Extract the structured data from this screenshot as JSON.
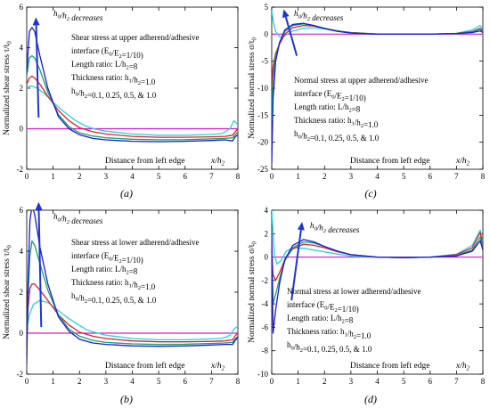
{
  "figure": {
    "colors": {
      "h01": "#1a1ad6",
      "h025": "#13a36a",
      "h05": "#e2202c",
      "h10": "#27d3e0",
      "zero": "#d61ad6",
      "arrow": "#1c35d8"
    }
  },
  "chart_data": [
    {
      "type": "line",
      "panel_tag": "(a)",
      "xlabel": "Distance from left edge",
      "xlabel_var": "x/h2",
      "ylabel": "Normalized shear stress τ/t0",
      "xlim": [
        0,
        8
      ],
      "ylim": [
        -2,
        6
      ],
      "xticks": [
        "0",
        "1",
        "2",
        "3",
        "4",
        "5",
        "6",
        "7",
        "8"
      ],
      "yticks": [
        "-2",
        "0",
        "2",
        "4",
        "6"
      ],
      "arrow_label": "h0/h2 decreases",
      "annotation": [
        "Shear stress at upper adherend/adhesive",
        "interface (E0/E2=1/10)",
        "Length ratio: L/h2=8",
        "Thickness ratio: h1/h2=1.0",
        "h0/h2=0.1, 0.25, 0.5, & 1.0"
      ],
      "series": [
        {
          "color_key": "h01",
          "x": [
            0,
            0.1,
            0.2,
            0.3,
            0.5,
            0.8,
            1.2,
            1.6,
            2,
            2.5,
            3,
            4,
            5,
            6,
            7,
            7.5,
            7.8,
            7.9,
            8
          ],
          "y": [
            2.8,
            4.8,
            5.0,
            4.8,
            3.6,
            2.0,
            0.6,
            0.0,
            -0.3,
            -0.48,
            -0.55,
            -0.62,
            -0.64,
            -0.62,
            -0.58,
            -0.55,
            -0.6,
            -0.4,
            -0.3
          ]
        },
        {
          "color_key": "h025",
          "x": [
            0,
            0.1,
            0.2,
            0.3,
            0.5,
            0.8,
            1.2,
            1.6,
            2,
            2.5,
            3,
            4,
            5,
            6,
            7,
            7.5,
            7.8,
            7.9,
            8
          ],
          "y": [
            2.6,
            3.5,
            3.6,
            3.5,
            2.9,
            1.8,
            0.7,
            0.1,
            -0.2,
            -0.36,
            -0.45,
            -0.52,
            -0.55,
            -0.54,
            -0.5,
            -0.48,
            -0.45,
            -0.3,
            -0.15
          ]
        },
        {
          "color_key": "h05",
          "x": [
            0,
            0.1,
            0.2,
            0.3,
            0.5,
            0.8,
            1.2,
            1.6,
            2,
            2.5,
            3,
            4,
            5,
            6,
            7,
            7.5,
            7.8,
            7.9,
            8
          ],
          "y": [
            2.2,
            2.5,
            2.6,
            2.5,
            2.2,
            1.6,
            0.9,
            0.4,
            0.05,
            -0.15,
            -0.26,
            -0.38,
            -0.42,
            -0.42,
            -0.4,
            -0.38,
            -0.32,
            -0.15,
            0.0
          ]
        },
        {
          "color_key": "h10",
          "x": [
            0,
            0.1,
            0.2,
            0.4,
            0.7,
            1.0,
            1.4,
            1.8,
            2.2,
            2.6,
            3,
            4,
            5,
            6,
            7,
            7.4,
            7.7,
            7.85,
            8
          ],
          "y": [
            2.0,
            2.1,
            2.1,
            2.0,
            1.7,
            1.3,
            0.85,
            0.45,
            0.15,
            -0.02,
            -0.12,
            -0.26,
            -0.32,
            -0.32,
            -0.28,
            -0.24,
            0.0,
            0.4,
            0.2
          ]
        }
      ]
    },
    {
      "type": "line",
      "panel_tag": "(c)",
      "xlabel": "Distance from left edge",
      "xlabel_var": "x/h2",
      "ylabel": "Normalized normal stress σ/t0",
      "xlim": [
        0,
        8
      ],
      "ylim": [
        -25,
        5
      ],
      "xticks": [
        "0",
        "1",
        "2",
        "3",
        "4",
        "5",
        "6",
        "7",
        "8"
      ],
      "yticks": [
        "-25",
        "-20",
        "-15",
        "-10",
        "-5",
        "0",
        "5"
      ],
      "arrow_label": "h0/h2 decreases",
      "annotation": [
        "Normal stress at upper adherend/adhesive",
        "interface (E0/E2=1/10)",
        "Length ratio: L/h2=8",
        "Thickness ratio: h1/h2=1.0",
        "h0/h2=0.1, 0.25, 0.5, & 1.0"
      ],
      "series": [
        {
          "color_key": "h01",
          "x": [
            0,
            0.05,
            0.15,
            0.3,
            0.5,
            0.8,
            1.2,
            1.6,
            2,
            2.5,
            3,
            4,
            5,
            6,
            7,
            7.6,
            7.9,
            8
          ],
          "y": [
            -24,
            -12,
            -5,
            -1.5,
            0.8,
            1.8,
            2.0,
            1.6,
            1.0,
            0.5,
            0.2,
            0.0,
            0.0,
            0.0,
            0.1,
            0.3,
            0.6,
            0.3
          ]
        },
        {
          "color_key": "h025",
          "x": [
            0,
            0.05,
            0.15,
            0.3,
            0.5,
            0.8,
            1.2,
            1.6,
            2,
            2.5,
            3,
            4,
            5,
            6,
            7,
            7.6,
            7.9,
            8
          ],
          "y": [
            -16,
            -8,
            -4,
            -1.5,
            0.5,
            1.6,
            1.9,
            1.6,
            1.1,
            0.6,
            0.25,
            0.0,
            0.0,
            0.0,
            0.1,
            0.4,
            0.9,
            0.5
          ]
        },
        {
          "color_key": "h05",
          "x": [
            0,
            0.05,
            0.15,
            0.3,
            0.5,
            0.8,
            1.2,
            1.6,
            2,
            2.5,
            3,
            4,
            5,
            6,
            7,
            7.6,
            7.9,
            8
          ],
          "y": [
            -10,
            -6,
            -3.5,
            -1.8,
            0.0,
            1.2,
            1.6,
            1.5,
            1.1,
            0.6,
            0.3,
            0.0,
            0.0,
            0.0,
            0.1,
            0.5,
            1.1,
            0.7
          ]
        },
        {
          "color_key": "h10",
          "x": [
            0,
            0.05,
            0.15,
            0.3,
            0.5,
            0.8,
            1.2,
            1.6,
            2,
            2.5,
            3,
            4,
            5,
            6,
            7,
            7.6,
            7.9,
            8
          ],
          "y": [
            4.5,
            2.5,
            0.5,
            -0.5,
            -0.3,
            0.6,
            1.1,
            1.2,
            1.0,
            0.6,
            0.3,
            0.05,
            0.0,
            0.0,
            0.15,
            0.8,
            1.6,
            1.0
          ]
        }
      ]
    },
    {
      "type": "line",
      "panel_tag": "(b)",
      "xlabel": "Distance from left edge",
      "xlabel_var": "x/h2",
      "ylabel": "Normalized shear stress τ/t0",
      "xlim": [
        0,
        8
      ],
      "ylim": [
        -2,
        6
      ],
      "xticks": [
        "0",
        "1",
        "2",
        "3",
        "4",
        "5",
        "6",
        "7",
        "8"
      ],
      "yticks": [
        "-2",
        "0",
        "2",
        "4",
        "6"
      ],
      "arrow_label": "h0/h2 decreases",
      "annotation": [
        "Shear stress at lower adherend/adhesive",
        "interface (E0/E2=1/10)",
        "Length ratio: L/h2=8",
        "Thickness ratio: h1/h2=1.0",
        "h0/h2=0.1, 0.25, 0.5, & 1.0"
      ],
      "series": [
        {
          "color_key": "h01",
          "x": [
            0,
            0.05,
            0.12,
            0.2,
            0.3,
            0.5,
            0.8,
            1.2,
            1.6,
            2,
            2.5,
            3,
            4,
            5,
            6,
            7,
            7.5,
            7.8,
            7.9,
            8
          ],
          "y": [
            -1.5,
            2.5,
            5.5,
            6.2,
            5.8,
            4.2,
            2.4,
            0.8,
            0.1,
            -0.3,
            -0.48,
            -0.55,
            -0.62,
            -0.64,
            -0.62,
            -0.58,
            -0.55,
            -0.55,
            -0.35,
            -0.2
          ]
        },
        {
          "color_key": "h025",
          "x": [
            0,
            0.05,
            0.12,
            0.2,
            0.3,
            0.5,
            0.8,
            1.2,
            1.6,
            2,
            2.5,
            3,
            4,
            5,
            6,
            7,
            7.5,
            7.8,
            7.9,
            8
          ],
          "y": [
            -1.0,
            1.8,
            3.8,
            4.5,
            4.3,
            3.4,
            2.1,
            0.9,
            0.2,
            -0.15,
            -0.35,
            -0.45,
            -0.52,
            -0.55,
            -0.54,
            -0.5,
            -0.48,
            -0.45,
            -0.28,
            -0.15
          ]
        },
        {
          "color_key": "h05",
          "x": [
            0,
            0.05,
            0.12,
            0.2,
            0.3,
            0.5,
            0.8,
            1.2,
            1.6,
            2,
            2.5,
            3,
            4,
            5,
            6,
            7,
            7.5,
            7.8,
            7.9,
            8
          ],
          "y": [
            -0.3,
            1.2,
            2.2,
            2.4,
            2.4,
            2.1,
            1.6,
            0.9,
            0.4,
            0.05,
            -0.15,
            -0.26,
            -0.38,
            -0.42,
            -0.42,
            -0.4,
            -0.38,
            -0.32,
            -0.12,
            0.0
          ]
        },
        {
          "color_key": "h10",
          "x": [
            0,
            0.1,
            0.25,
            0.5,
            0.8,
            1.1,
            1.5,
            1.9,
            2.3,
            2.7,
            3,
            4,
            5,
            6,
            7,
            7.4,
            7.7,
            7.85,
            8
          ],
          "y": [
            0.2,
            0.9,
            1.4,
            1.6,
            1.5,
            1.2,
            0.8,
            0.45,
            0.15,
            0.0,
            -0.1,
            -0.26,
            -0.32,
            -0.32,
            -0.28,
            -0.26,
            -0.1,
            0.2,
            0.35
          ]
        }
      ]
    },
    {
      "type": "line",
      "panel_tag": "(d)",
      "xlabel": "Distance from left edge",
      "xlabel_var": "x/h2",
      "ylabel": "Normalized normal stress σ/t0",
      "xlim": [
        0,
        8
      ],
      "ylim": [
        -10,
        4
      ],
      "xticks": [
        "0",
        "1",
        "2",
        "3",
        "4",
        "5",
        "6",
        "7",
        "8"
      ],
      "yticks": [
        "-10",
        "-8",
        "-6",
        "-4",
        "-2",
        "0",
        "2",
        "4"
      ],
      "arrow_label": "h0/h2 decreases",
      "annotation": [
        "Normal stress at lower adherend/adhesive",
        "interface (E0/E2=1/10)",
        "Length ratio: L/h2=8",
        "Thickness ratio: h1/h2=1.0",
        "h0/h2=0.1, 0.25, 0.5, & 1.0"
      ],
      "series": [
        {
          "color_key": "h01",
          "x": [
            0,
            0.05,
            0.15,
            0.3,
            0.5,
            0.8,
            1.2,
            1.6,
            2,
            2.5,
            3,
            4,
            5,
            6,
            7,
            7.6,
            7.9,
            8
          ],
          "y": [
            2.0,
            -6.5,
            -4.5,
            -2.2,
            -0.2,
            1.0,
            1.5,
            1.3,
            0.9,
            0.5,
            0.2,
            0.0,
            -0.05,
            0.0,
            0.1,
            0.5,
            1.4,
            0.6
          ]
        },
        {
          "color_key": "h025",
          "x": [
            0,
            0.05,
            0.15,
            0.3,
            0.5,
            0.8,
            1.2,
            1.6,
            2,
            2.5,
            3,
            4,
            5,
            6,
            7,
            7.6,
            7.9,
            8
          ],
          "y": [
            1.2,
            -4.0,
            -3.2,
            -1.8,
            -0.3,
            0.8,
            1.3,
            1.2,
            0.9,
            0.5,
            0.2,
            0.0,
            -0.05,
            0.0,
            0.15,
            0.6,
            1.7,
            0.8
          ]
        },
        {
          "color_key": "h05",
          "x": [
            0,
            0.05,
            0.15,
            0.3,
            0.5,
            0.8,
            1.2,
            1.6,
            2,
            2.5,
            3,
            4,
            5,
            6,
            7,
            7.6,
            7.9,
            8
          ],
          "y": [
            0.5,
            -1.5,
            -2.0,
            -1.3,
            -0.2,
            0.7,
            1.1,
            1.0,
            0.8,
            0.45,
            0.2,
            0.0,
            -0.05,
            0.0,
            0.2,
            0.8,
            2.1,
            1.0
          ]
        },
        {
          "color_key": "h10",
          "x": [
            0,
            0.1,
            0.2,
            0.35,
            0.55,
            0.8,
            1.2,
            1.6,
            2,
            2.5,
            3,
            4,
            5,
            6,
            7,
            7.6,
            7.9,
            8
          ],
          "y": [
            4.0,
            0.2,
            -0.6,
            -0.3,
            0.5,
            0.8,
            0.75,
            0.6,
            0.45,
            0.25,
            0.1,
            0.0,
            -0.05,
            0.0,
            0.25,
            1.0,
            2.3,
            1.2
          ]
        }
      ]
    }
  ]
}
